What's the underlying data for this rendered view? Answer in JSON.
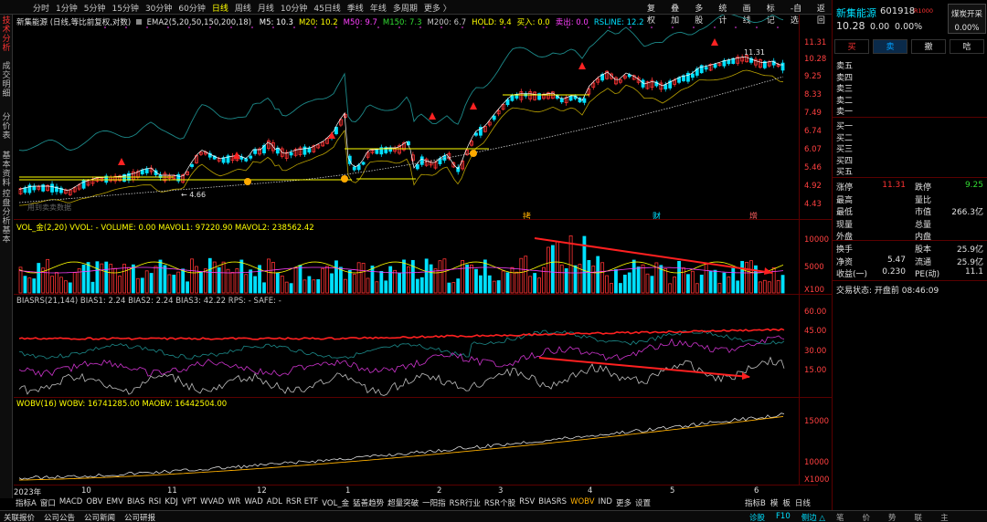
{
  "topbar": {
    "periods": [
      "分时",
      "1分钟",
      "5分钟",
      "15分钟",
      "30分钟",
      "60分钟",
      "日线",
      "周线",
      "月线",
      "10分钟",
      "45日线",
      "季线",
      "年线",
      "多周期",
      "更多 〉"
    ],
    "active_period": "日线",
    "buttons": [
      "复权",
      "叠加",
      "多股",
      "统计",
      "画线",
      "标记",
      "-自选",
      "返回"
    ]
  },
  "lefttabs": [
    "技术分析",
    "成交明细",
    "分价表",
    "基本资料",
    "控盘分析",
    "基本"
  ],
  "kline": {
    "title": "新集能源 (日线,等比前复权,对数)",
    "indicator": "EMA2(5,20,50,150,200,18)",
    "ma_values": [
      {
        "label": "M5: 10.3",
        "color": "#ffffff"
      },
      {
        "label": "M20: 10.2",
        "color": "#ffff00"
      },
      {
        "label": "M50: 9.7",
        "color": "#ff40ff"
      },
      {
        "label": "M150: 7.3",
        "color": "#33dd33"
      },
      {
        "label": "M200: 6.7",
        "color": "#c8c8c8"
      },
      {
        "label": "HOLD: 9.4",
        "color": "#ffff00"
      },
      {
        "label": "买入: 0.0",
        "color": "#ffff00"
      },
      {
        "label": "卖出: 0.0",
        "color": "#ff40ff"
      },
      {
        "label": "RSLINE: 12.2",
        "color": "#00e0ff"
      }
    ],
    "y_ticks": [
      "11.31",
      "10.28",
      "9.25",
      "8.33",
      "7.49",
      "6.74",
      "6.07",
      "5.46",
      "4.92",
      "4.43"
    ],
    "high_label": "11.31",
    "low_label": "4.66",
    "watermark": "用到卖卖数据",
    "event_labels": [
      {
        "text": "拷",
        "color": "#ffb000"
      },
      {
        "text": "财",
        "color": "#00e0ff"
      },
      {
        "text": "增",
        "color": "#ff6060"
      }
    ]
  },
  "volume": {
    "title": "VOL_金(2,20)  VVOL: -  VOLUME: 0.00  MAVOL1: 97220.90  MAVOL2: 238562.42",
    "y_ticks": [
      "10000",
      "5000",
      "X100"
    ]
  },
  "bias": {
    "title": "BIASRS(21,144)  BIAS1: 2.24  BIAS2: 2.24  BIAS3: 42.22  RPS: -  SAFE: -",
    "y_ticks": [
      "60.00",
      "45.00",
      "30.00",
      "15.00"
    ]
  },
  "wobv": {
    "title": "WOBV(16)  WOBV: 16741285.00  MAOBV: 16442504.00",
    "y_ticks": [
      "15000",
      "10000",
      "X1000"
    ]
  },
  "dates": [
    "2023年",
    "10",
    "11",
    "12",
    "1",
    "2",
    "3",
    "4",
    "5",
    "6"
  ],
  "bottomtabs": [
    "指标A",
    "窗口",
    "MACD",
    "OBV",
    "EMV",
    "BIAS",
    "RSI",
    "KDJ",
    "VPT",
    "WVAD",
    "WR",
    "WAD",
    "ADL",
    "RSR ETF",
    "VOL_金",
    "猛善趋势",
    "超量突破",
    "一阳指",
    "RSR行业",
    "RSR个股",
    "RSV",
    "BIASRS",
    "WOBV",
    "IND",
    "更多",
    "设置"
  ],
  "bottomtabs_active": "WOBV",
  "bottom_right": [
    "指标B",
    "模",
    "板",
    "日线"
  ],
  "status": {
    "left": [
      "关联报价",
      "公司公告",
      "公司新闻",
      "公司研报"
    ],
    "right": [
      "诊股",
      "F10",
      "侧边 △"
    ],
    "small": [
      "笔",
      "价",
      "势",
      "联",
      "主"
    ]
  },
  "stock": {
    "name": "新集能源",
    "code": "601918",
    "flag": "R1000",
    "price": "10.28",
    "change": "0.00",
    "pct": "0.00%",
    "tag": "煤炭开采",
    "tag_pct": "0.00%",
    "actions": [
      "买",
      "卖",
      "撤",
      "唁"
    ],
    "asks": [
      "卖五",
      "卖四",
      "卖三",
      "卖二",
      "卖一"
    ],
    "bids": [
      "买一",
      "买二",
      "买三",
      "买四",
      "买五"
    ],
    "stats": [
      [
        "涨停",
        "11.31",
        "跌停",
        "9.25"
      ],
      [
        "最高",
        "",
        "量比",
        ""
      ],
      [
        "最低",
        "",
        "市值",
        "266.3亿"
      ],
      [
        "现量",
        "",
        "总量",
        ""
      ],
      [
        "外盘",
        "",
        "内盘",
        ""
      ]
    ],
    "stats2": [
      [
        "换手",
        "",
        "股本",
        "25.9亿"
      ],
      [
        "净资",
        "5.47",
        "流通",
        "25.9亿"
      ],
      [
        "收益(一)",
        "0.230",
        "PE(动)",
        "11.1"
      ]
    ],
    "trade_status": "交易状态: 开盘前 08:46:09"
  },
  "colors": {
    "up": "#ff3333",
    "down": "#00e0ff",
    "ma5": "#ffffff",
    "ma20": "#ffff00"
  }
}
